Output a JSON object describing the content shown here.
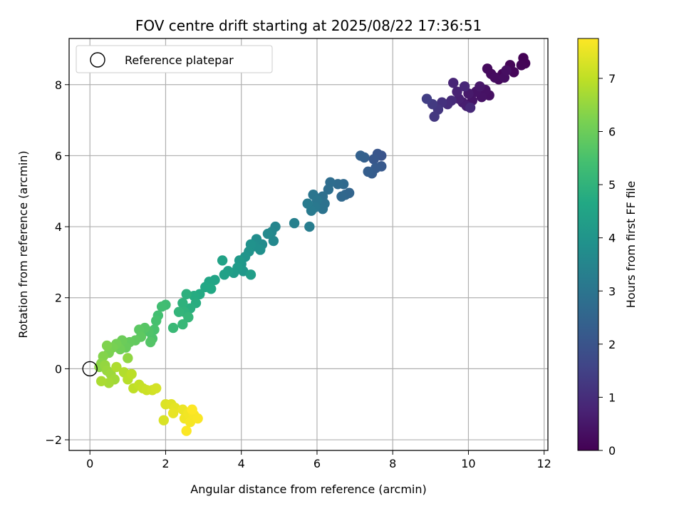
{
  "chart_data": {
    "type": "scatter",
    "title": "FOV centre drift starting at 2025/08/22 17:36:51",
    "xlabel": "Angular distance from reference (arcmin)",
    "ylabel": "Rotation from reference (arcmin)",
    "xlim": [
      -0.55,
      12.1
    ],
    "ylim": [
      -2.3,
      9.3
    ],
    "xticks": [
      0,
      2,
      4,
      6,
      8,
      10,
      12
    ],
    "xtick_labels": [
      "0",
      "2",
      "4",
      "6",
      "8",
      "10",
      "12"
    ],
    "yticks": [
      -2,
      0,
      2,
      4,
      6,
      8
    ],
    "ytick_labels": [
      "−2",
      "0",
      "2",
      "4",
      "6",
      "8"
    ],
    "grid": true,
    "legend": {
      "position": "upper-left",
      "label": "Reference platepar"
    },
    "reference_point": {
      "x": 0,
      "y": 0
    },
    "colorbar": {
      "label": "Hours from first FF file",
      "colormap": "viridis",
      "range": [
        0,
        7.75
      ],
      "ticks": [
        0,
        1,
        2,
        3,
        4,
        5,
        6,
        7
      ],
      "tick_labels": [
        "0",
        "1",
        "2",
        "3",
        "4",
        "5",
        "6",
        "7"
      ]
    },
    "points": [
      [
        11.45,
        8.75,
        0.03
      ],
      [
        11.5,
        8.6,
        0.05
      ],
      [
        11.4,
        8.55,
        0.08
      ],
      [
        11.1,
        8.55,
        0.1
      ],
      [
        11.2,
        8.35,
        0.12
      ],
      [
        10.9,
        8.3,
        0.15
      ],
      [
        10.8,
        8.15,
        0.18
      ],
      [
        10.6,
        8.3,
        0.2
      ],
      [
        10.5,
        8.45,
        0.22
      ],
      [
        10.7,
        8.2,
        0.25
      ],
      [
        10.95,
        8.2,
        0.28
      ],
      [
        11.0,
        8.4,
        0.3
      ],
      [
        10.55,
        7.7,
        0.35
      ],
      [
        10.45,
        7.85,
        0.38
      ],
      [
        10.35,
        7.65,
        0.4
      ],
      [
        10.2,
        7.8,
        0.42
      ],
      [
        10.1,
        7.55,
        0.45
      ],
      [
        10.3,
        7.95,
        0.5
      ],
      [
        10.0,
        7.75,
        0.55
      ],
      [
        9.85,
        7.5,
        0.6
      ],
      [
        9.95,
        7.4,
        0.65
      ],
      [
        9.75,
        7.6,
        0.7
      ],
      [
        9.7,
        7.8,
        0.75
      ],
      [
        9.6,
        8.05,
        0.8
      ],
      [
        9.9,
        7.95,
        0.85
      ],
      [
        10.05,
        7.35,
        0.9
      ],
      [
        9.55,
        7.55,
        0.95
      ],
      [
        9.45,
        7.45,
        1.0
      ],
      [
        9.3,
        7.5,
        1.1
      ],
      [
        9.2,
        7.3,
        1.2
      ],
      [
        9.1,
        7.1,
        1.25
      ],
      [
        9.05,
        7.45,
        1.3
      ],
      [
        8.9,
        7.6,
        1.4
      ],
      [
        7.7,
        6.0,
        2.0
      ],
      [
        7.6,
        6.05,
        2.05
      ],
      [
        7.5,
        5.9,
        2.1
      ],
      [
        7.7,
        5.7,
        2.15
      ],
      [
        7.55,
        5.65,
        2.2
      ],
      [
        7.45,
        5.5,
        2.25
      ],
      [
        7.35,
        5.55,
        2.3
      ],
      [
        7.25,
        5.95,
        2.35
      ],
      [
        7.15,
        6.0,
        2.4
      ],
      [
        6.85,
        4.95,
        2.5
      ],
      [
        6.75,
        4.9,
        2.55
      ],
      [
        6.65,
        4.85,
        2.6
      ],
      [
        6.7,
        5.2,
        2.65
      ],
      [
        6.55,
        5.2,
        2.7
      ],
      [
        6.35,
        5.25,
        2.75
      ],
      [
        6.3,
        5.05,
        2.8
      ],
      [
        6.15,
        4.85,
        2.85
      ],
      [
        6.2,
        4.65,
        2.9
      ],
      [
        6.15,
        4.5,
        2.95
      ],
      [
        5.9,
        4.9,
        3.0
      ],
      [
        6.0,
        4.75,
        3.05
      ],
      [
        5.95,
        4.55,
        3.1
      ],
      [
        5.85,
        4.45,
        3.15
      ],
      [
        5.75,
        4.65,
        3.2
      ],
      [
        5.8,
        4.0,
        3.25
      ],
      [
        5.4,
        4.1,
        3.35
      ],
      [
        4.9,
        4.0,
        3.5
      ],
      [
        4.8,
        3.85,
        3.55
      ],
      [
        4.85,
        3.6,
        3.6
      ],
      [
        4.7,
        3.8,
        3.65
      ],
      [
        4.55,
        3.5,
        3.7
      ],
      [
        4.4,
        3.65,
        3.75
      ],
      [
        4.35,
        3.45,
        3.8
      ],
      [
        4.5,
        3.35,
        3.85
      ],
      [
        4.25,
        3.5,
        3.9
      ],
      [
        4.2,
        3.3,
        3.95
      ],
      [
        4.1,
        3.15,
        4.0
      ],
      [
        4.0,
        2.95,
        4.05
      ],
      [
        4.05,
        2.75,
        4.1
      ],
      [
        3.95,
        3.05,
        4.15
      ],
      [
        3.9,
        2.85,
        4.2
      ],
      [
        3.8,
        2.7,
        4.25
      ],
      [
        4.25,
        2.65,
        4.3
      ],
      [
        3.65,
        2.75,
        4.35
      ],
      [
        3.55,
        2.65,
        4.4
      ],
      [
        3.5,
        3.05,
        4.45
      ],
      [
        3.3,
        2.5,
        4.5
      ],
      [
        3.15,
        2.45,
        4.55
      ],
      [
        3.05,
        2.3,
        4.6
      ],
      [
        3.2,
        2.25,
        4.65
      ],
      [
        2.9,
        2.1,
        4.7
      ],
      [
        2.75,
        2.05,
        4.75
      ],
      [
        2.8,
        1.85,
        4.8
      ],
      [
        2.65,
        1.7,
        4.85
      ],
      [
        2.55,
        2.1,
        4.9
      ],
      [
        2.45,
        1.85,
        4.95
      ],
      [
        2.5,
        1.6,
        5.0
      ],
      [
        2.35,
        1.6,
        5.05
      ],
      [
        2.6,
        1.45,
        5.1
      ],
      [
        2.45,
        1.25,
        5.15
      ],
      [
        2.2,
        1.15,
        5.2
      ],
      [
        2.0,
        1.8,
        5.3
      ],
      [
        1.9,
        1.75,
        5.35
      ],
      [
        1.8,
        1.5,
        5.4
      ],
      [
        1.75,
        1.35,
        5.45
      ],
      [
        1.7,
        1.1,
        5.5
      ],
      [
        1.65,
        0.85,
        5.55
      ],
      [
        1.55,
        1.05,
        5.6
      ],
      [
        1.6,
        0.75,
        5.65
      ],
      [
        1.45,
        1.15,
        5.7
      ],
      [
        1.3,
        1.1,
        5.75
      ],
      [
        1.35,
        0.9,
        5.8
      ],
      [
        1.2,
        0.8,
        5.85
      ],
      [
        1.05,
        0.75,
        5.9
      ],
      [
        0.95,
        0.6,
        5.95
      ],
      [
        0.85,
        0.8,
        6.0
      ],
      [
        0.8,
        0.55,
        6.05
      ],
      [
        0.7,
        0.7,
        6.1
      ],
      [
        0.6,
        0.6,
        6.15
      ],
      [
        0.5,
        0.45,
        6.2
      ],
      [
        0.45,
        0.65,
        6.25
      ],
      [
        0.35,
        0.35,
        6.3
      ],
      [
        0.3,
        0.15,
        6.35
      ],
      [
        0.25,
        0.05,
        6.4
      ],
      [
        1.0,
        0.3,
        6.45
      ],
      [
        0.4,
        0.1,
        6.5
      ],
      [
        0.45,
        -0.05,
        6.55
      ],
      [
        0.55,
        -0.15,
        6.6
      ],
      [
        0.65,
        -0.3,
        6.65
      ],
      [
        0.5,
        -0.4,
        6.7
      ],
      [
        0.3,
        -0.35,
        6.75
      ],
      [
        0.7,
        0.05,
        6.8
      ],
      [
        0.9,
        -0.1,
        6.85
      ],
      [
        1.0,
        -0.3,
        6.9
      ],
      [
        1.1,
        -0.15,
        6.95
      ],
      [
        1.15,
        -0.55,
        7.0
      ],
      [
        1.3,
        -0.45,
        7.05
      ],
      [
        1.4,
        -0.55,
        7.1
      ],
      [
        1.5,
        -0.6,
        7.15
      ],
      [
        1.65,
        -0.6,
        7.2
      ],
      [
        1.75,
        -0.55,
        7.25
      ],
      [
        1.95,
        -1.45,
        7.3
      ],
      [
        2.0,
        -1.0,
        7.35
      ],
      [
        2.15,
        -1.0,
        7.4
      ],
      [
        2.25,
        -1.1,
        7.45
      ],
      [
        2.2,
        -1.25,
        7.5
      ],
      [
        2.45,
        -1.15,
        7.55
      ],
      [
        2.5,
        -1.4,
        7.6
      ],
      [
        2.6,
        -1.25,
        7.62
      ],
      [
        2.65,
        -1.5,
        7.65
      ],
      [
        2.75,
        -1.3,
        7.68
      ],
      [
        2.85,
        -1.4,
        7.7
      ],
      [
        2.55,
        -1.75,
        7.72
      ],
      [
        2.7,
        -1.15,
        7.75
      ]
    ]
  }
}
